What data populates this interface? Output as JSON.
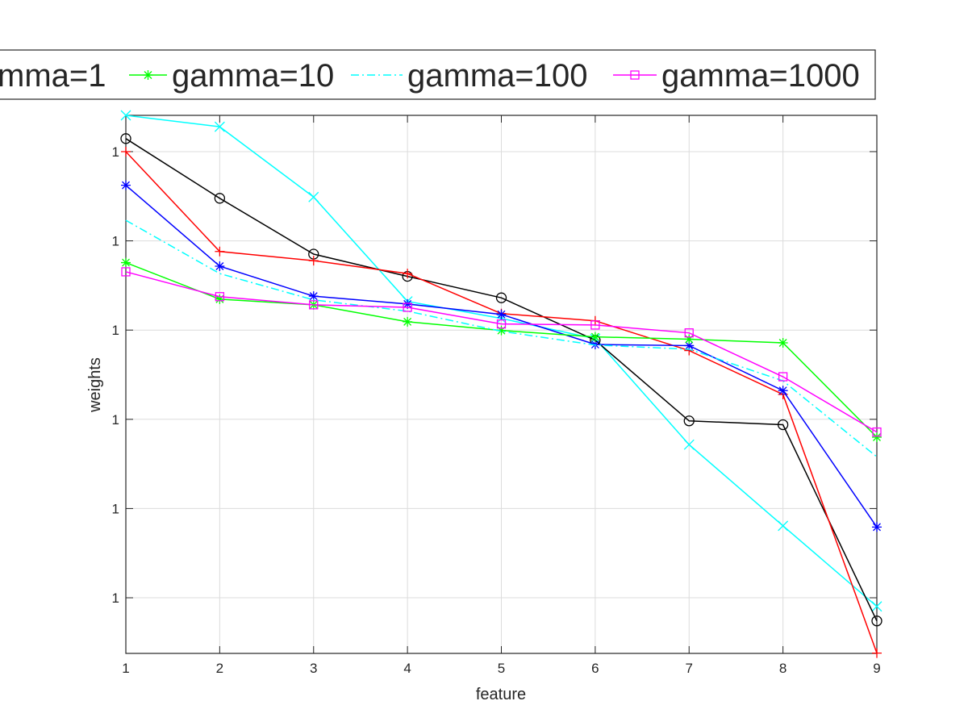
{
  "chart_data": {
    "type": "line",
    "x_label": "feature",
    "y_label": "weights",
    "xlim": [
      1,
      9
    ],
    "xticks": [
      1,
      2,
      3,
      4,
      5,
      6,
      7,
      8,
      9
    ],
    "ylim": [
      2.38e-06,
      2.55
    ],
    "yticks": [
      {
        "value": 1e-05,
        "label": "1"
      },
      {
        "value": 0.0001,
        "label": "1"
      },
      {
        "value": 0.001,
        "label": "1"
      },
      {
        "value": 0.01,
        "label": "1"
      },
      {
        "value": 0.1,
        "label": "1"
      },
      {
        "value": 1,
        "label": "1"
      }
    ],
    "log_y": true,
    "grid": true,
    "legend": "top",
    "series": [
      {
        "color": "#00ffff",
        "marker": "x",
        "dash": "solid",
        "x": [
          1,
          2,
          3,
          4,
          5,
          6,
          7,
          8,
          9
        ],
        "values": [
          2.55,
          1.9,
          0.31,
          0.021,
          0.0135,
          0.008,
          0.00052,
          6.4e-05,
          8e-06
        ]
      },
      {
        "color": "#000000",
        "marker": "o",
        "dash": "solid",
        "x": [
          1,
          2,
          3,
          4,
          5,
          6,
          7,
          8,
          9
        ],
        "values": [
          1.4,
          0.3,
          0.071,
          0.04,
          0.023,
          0.0077,
          0.00096,
          0.00087,
          5.5e-06
        ]
      },
      {
        "color": "#ff0000",
        "marker": "+",
        "dash": "solid",
        "x": [
          1,
          2,
          3,
          4,
          5,
          6,
          7,
          8,
          9
        ],
        "values": [
          1,
          0.076,
          0.06,
          0.043,
          0.0153,
          0.0127,
          0.0059,
          0.0019,
          2.4e-06
        ]
      },
      {
        "name": "mma=1",
        "color": "#0000ff",
        "marker": "*",
        "dash": "solid",
        "x": [
          1,
          2,
          3,
          4,
          5,
          6,
          7,
          8,
          9
        ],
        "values": [
          0.42,
          0.052,
          0.024,
          0.0196,
          0.015,
          0.0069,
          0.0067,
          0.0021,
          6.2e-05
        ]
      },
      {
        "name": "gamma=10",
        "color": "#00ff00",
        "marker": "*",
        "dash": "solid",
        "x": [
          1,
          2,
          3,
          4,
          5,
          6,
          7,
          8,
          9
        ],
        "values": [
          0.057,
          0.0222,
          0.0192,
          0.0124,
          0.0099,
          0.0084,
          0.0079,
          0.0072,
          0.00063
        ]
      },
      {
        "name": "gamma=100",
        "color": "#00ffff",
        "marker": "none",
        "dash": "dashdot",
        "x": [
          1,
          2,
          3,
          4,
          5,
          6,
          7,
          8,
          9
        ],
        "values": [
          0.17,
          0.043,
          0.0218,
          0.0163,
          0.0097,
          0.0068,
          0.0061,
          0.0027,
          0.00038
        ]
      },
      {
        "name": "gamma=1000",
        "color": "#ff00ff",
        "marker": "square",
        "dash": "solid",
        "x": [
          1,
          2,
          3,
          4,
          5,
          6,
          7,
          8,
          9
        ],
        "values": [
          0.045,
          0.0237,
          0.0192,
          0.018,
          0.0117,
          0.0114,
          0.0093,
          0.003,
          0.00072
        ]
      }
    ]
  }
}
